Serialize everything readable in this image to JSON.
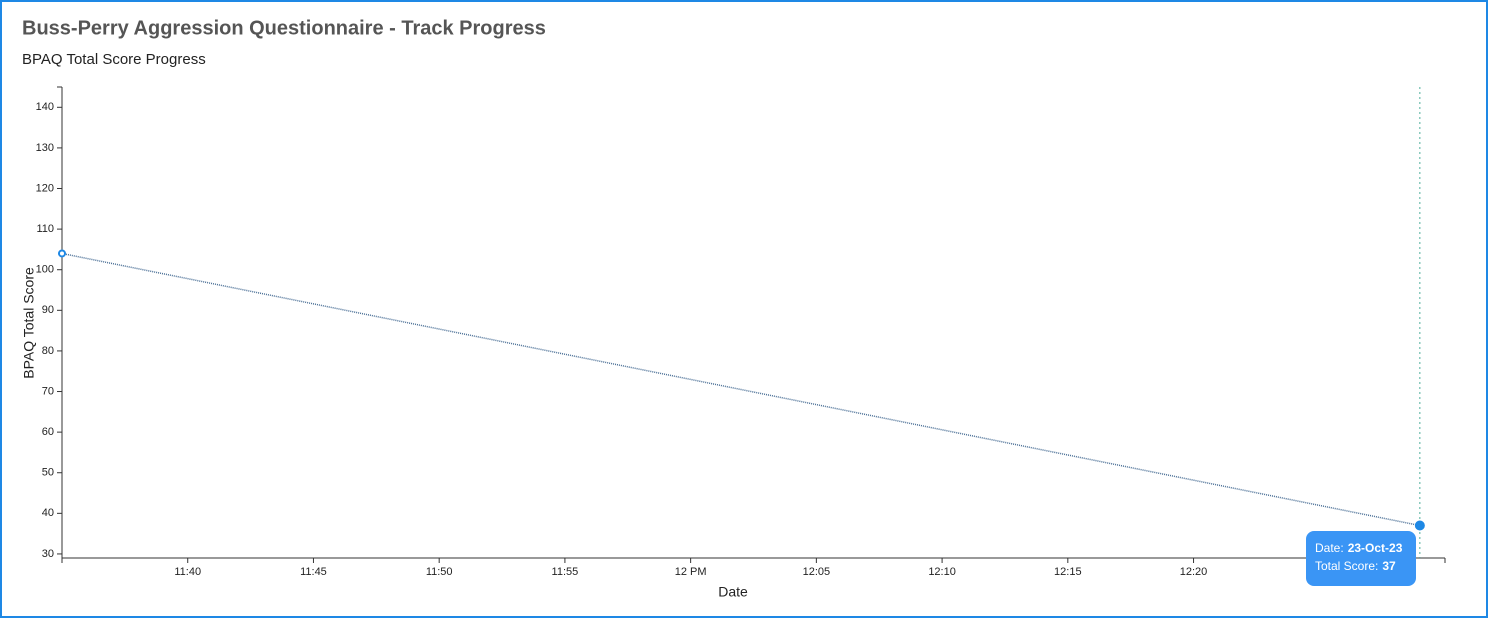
{
  "page": {
    "title": "Buss-Perry Aggression Questionnaire - Track Progress"
  },
  "chart_data": {
    "type": "line",
    "title": "BPAQ Total Score Progress",
    "x_label": "Date",
    "y_label": "BPAQ Total Score",
    "x": [
      "11:35",
      "12:29"
    ],
    "series": [
      {
        "name": "BPAQ Total Score",
        "color": "#4a6f96",
        "marker_color": "#1e88e5",
        "values": [
          104,
          37
        ]
      }
    ],
    "xlim": [
      "11:35",
      "12:30"
    ],
    "xticks": [
      "11:40",
      "11:45",
      "11:50",
      "11:55",
      {
        "value": "12:00",
        "label": "12 PM"
      },
      "12:05",
      "12:10",
      "12:15",
      "12:20"
    ],
    "ylim": [
      29,
      145
    ],
    "yticks": [
      30,
      40,
      50,
      60,
      70,
      80,
      90,
      100,
      110,
      120,
      130,
      140
    ],
    "tooltip": {
      "date_label": "Date:",
      "date": "23-Oct-23",
      "score_label": "Total Score:"
    }
  }
}
